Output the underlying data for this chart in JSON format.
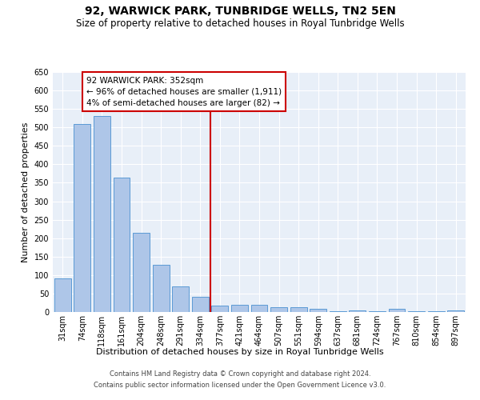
{
  "title": "92, WARWICK PARK, TUNBRIDGE WELLS, TN2 5EN",
  "subtitle": "Size of property relative to detached houses in Royal Tunbridge Wells",
  "xlabel": "Distribution of detached houses by size in Royal Tunbridge Wells",
  "ylabel": "Number of detached properties",
  "footer_line1": "Contains HM Land Registry data © Crown copyright and database right 2024.",
  "footer_line2": "Contains public sector information licensed under the Open Government Licence v3.0.",
  "categories": [
    "31sqm",
    "74sqm",
    "118sqm",
    "161sqm",
    "204sqm",
    "248sqm",
    "291sqm",
    "334sqm",
    "377sqm",
    "421sqm",
    "464sqm",
    "507sqm",
    "551sqm",
    "594sqm",
    "637sqm",
    "681sqm",
    "724sqm",
    "767sqm",
    "810sqm",
    "854sqm",
    "897sqm"
  ],
  "values": [
    90,
    510,
    530,
    365,
    215,
    127,
    70,
    42,
    18,
    20,
    20,
    12,
    13,
    8,
    2,
    5,
    2,
    8,
    2,
    2,
    4
  ],
  "bar_color": "#aec6e8",
  "bar_edge_color": "#5b9bd5",
  "vline_x_index": 7.5,
  "vline_color": "#cc0000",
  "annotation_text": "92 WARWICK PARK: 352sqm\n← 96% of detached houses are smaller (1,911)\n4% of semi-detached houses are larger (82) →",
  "annotation_box_color": "#cc0000",
  "ylim": [
    0,
    650
  ],
  "axes_background": "#e8eff8",
  "grid_color": "#ffffff",
  "title_fontsize": 10,
  "subtitle_fontsize": 8.5,
  "xlabel_fontsize": 8,
  "ylabel_fontsize": 8,
  "tick_fontsize": 7,
  "annotation_fontsize": 7.5,
  "footer_fontsize": 6
}
